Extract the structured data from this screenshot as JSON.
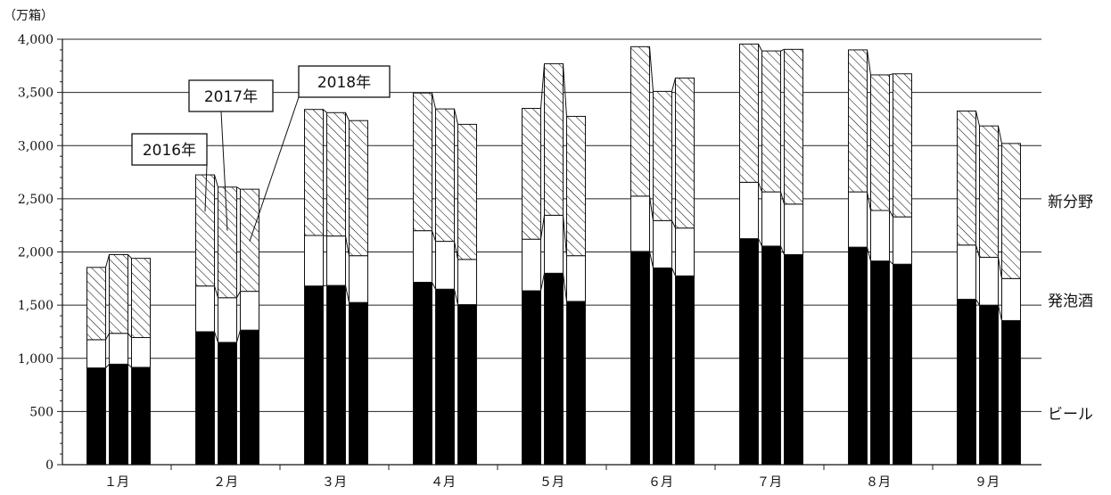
{
  "chart_data": {
    "type": "bar",
    "stacked": true,
    "unit_label": "（万箱）",
    "categories": [
      "１月",
      "２月",
      "３月",
      "４月",
      "５月",
      "６月",
      "７月",
      "８月",
      "９月"
    ],
    "years": [
      "2016年",
      "2017年",
      "2018年"
    ],
    "ylim": [
      0,
      4000
    ],
    "yticks": [
      0,
      500,
      1000,
      1500,
      2000,
      2500,
      3000,
      3500,
      4000
    ],
    "ytick_labels": [
      "0",
      "500",
      "1,000",
      "1,500",
      "2,000",
      "2,500",
      "3,000",
      "3,500",
      "4,000"
    ],
    "grid": true,
    "series": [
      {
        "name": "ビール",
        "fill": "#000000",
        "values": [
          [
            910,
            945,
            915
          ],
          [
            1250,
            1150,
            1265
          ],
          [
            1680,
            1685,
            1525
          ],
          [
            1715,
            1650,
            1505
          ],
          [
            1635,
            1800,
            1535
          ],
          [
            2005,
            1850,
            1775
          ],
          [
            2125,
            2055,
            1975
          ],
          [
            2045,
            1915,
            1885
          ],
          [
            1555,
            1500,
            1355
          ]
        ]
      },
      {
        "name": "発泡酒",
        "fill": "#ffffff",
        "values": [
          [
            265,
            290,
            280
          ],
          [
            430,
            420,
            365
          ],
          [
            475,
            465,
            440
          ],
          [
            485,
            450,
            425
          ],
          [
            485,
            545,
            430
          ],
          [
            520,
            445,
            450
          ],
          [
            530,
            510,
            475
          ],
          [
            520,
            475,
            445
          ],
          [
            510,
            450,
            395
          ]
        ]
      },
      {
        "name": "新分野",
        "fill": "hatch",
        "values": [
          [
            680,
            740,
            745
          ],
          [
            1045,
            1040,
            960
          ],
          [
            1185,
            1160,
            1270
          ],
          [
            1295,
            1245,
            1270
          ],
          [
            1230,
            1425,
            1310
          ],
          [
            1405,
            1215,
            1410
          ],
          [
            1300,
            1325,
            1455
          ],
          [
            1335,
            1275,
            1345
          ],
          [
            1260,
            1235,
            1270
          ]
        ]
      }
    ],
    "callouts": [
      "2016年",
      "2017年",
      "2018年"
    ],
    "legend_placement": "right, aligned with top stack of last group"
  }
}
